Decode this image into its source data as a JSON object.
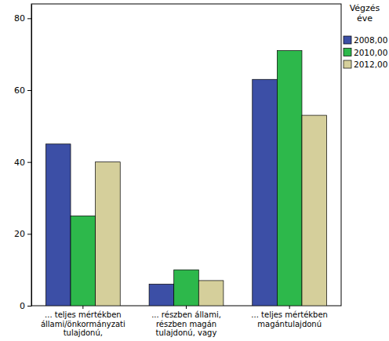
{
  "chart_data": {
    "type": "bar",
    "legend_title": "Végzés éve",
    "legend": "top-right",
    "grid": false,
    "categories": [
      "... teljes mértékben állami/önkormányzati tulajdonú,",
      "... részben állami, részben magán tulajdonú, vagy",
      "... teljes mértékben magántulajdonú"
    ],
    "series": [
      {
        "name": "2008,00",
        "color": "#3c4fa6",
        "values": [
          45,
          6,
          63
        ]
      },
      {
        "name": "2010,00",
        "color": "#2db84b",
        "values": [
          25,
          10,
          71
        ]
      },
      {
        "name": "2012,00",
        "color": "#d5cf9b",
        "values": [
          40,
          7,
          53
        ]
      }
    ],
    "ylim": [
      0,
      84
    ],
    "yticks": [
      0,
      20,
      40,
      60,
      80
    ]
  }
}
